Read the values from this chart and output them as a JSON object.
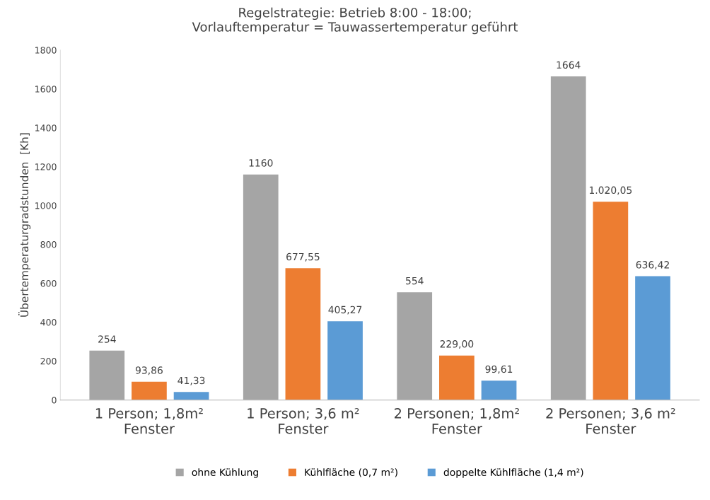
{
  "chart_data": {
    "type": "bar",
    "title": "Regelstrategie: Betrieb 8:00 - 18:00;\nVorlauftemperatur = Tauwassertemperatur geführt",
    "ylabel": "Übertemperaturgradstunden  [Kh]",
    "categories": [
      "1 Person; 1,8m²\nFenster",
      "1 Person; 3,6 m²\nFenster",
      "2 Personen; 1,8m²\nFenster",
      "2 Personen; 3,6 m²\nFenster"
    ],
    "series": [
      {
        "name": "ohne Kühlung",
        "color": "#a5a5a5",
        "values": [
          254,
          1160,
          554,
          1664
        ],
        "value_labels": [
          "254",
          "1160",
          "554",
          "1664"
        ]
      },
      {
        "name": "Kühlfläche (0,7 m²)",
        "color": "#ed7d31",
        "values": [
          93.86,
          677.55,
          229.0,
          1020.05
        ],
        "value_labels": [
          "93,86",
          "677,55",
          "229,00",
          "1.020,05"
        ]
      },
      {
        "name": "doppelte Kühlfläche (1,4 m²)",
        "color": "#5b9bd5",
        "values": [
          41.33,
          405.27,
          99.61,
          636.42
        ],
        "value_labels": [
          "41,33",
          "405,27",
          "99,61",
          "636,42"
        ]
      }
    ],
    "ylim": [
      0,
      1800
    ],
    "yticks": [
      0,
      200,
      400,
      600,
      800,
      1000,
      1200,
      1400,
      1600,
      1800
    ],
    "grid": false,
    "legend": "bottom"
  }
}
